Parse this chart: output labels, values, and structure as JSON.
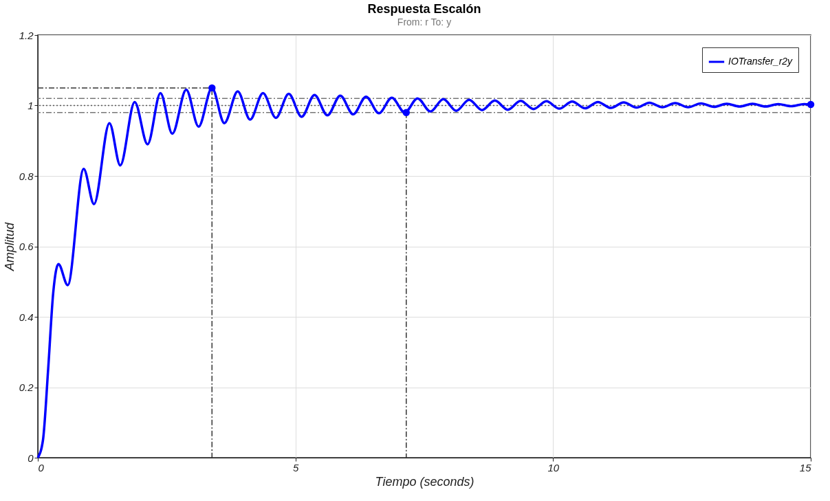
{
  "chart_data": {
    "type": "line",
    "title": "Respuesta Escalón",
    "subtitle": "From: r  To: y",
    "xlabel": "Tiempo (seconds)",
    "ylabel": "Amplitud",
    "xlim": [
      0,
      15
    ],
    "xticks": [
      0,
      5,
      10,
      15
    ],
    "ylim": [
      0,
      1.2
    ],
    "yticks": [
      0,
      0.2,
      0.4,
      0.6,
      0.8,
      1,
      1.2
    ],
    "grid": true,
    "legend": "top right",
    "series": [
      {
        "name": "IOTransfer_r2y",
        "color": "#0000ff",
        "line_style": "solid",
        "x": [
          0,
          0.1,
          0.2,
          0.3,
          0.4,
          0.58,
          0.89,
          1.09,
          1.39,
          1.6,
          1.88,
          2.13,
          2.38,
          2.61,
          2.88,
          3.12,
          3.38,
          3.62,
          3.88,
          4.12,
          4.37,
          4.62,
          4.87,
          5.12,
          5.37,
          5.62,
          5.87,
          6.12,
          6.37,
          6.62,
          6.87,
          7.12,
          7.37,
          7.62,
          7.87,
          8.12,
          8.37,
          8.62,
          8.87,
          9.12,
          9.37,
          9.62,
          9.87,
          10.12,
          10.37,
          10.62,
          10.87,
          11.12,
          11.37,
          11.62,
          11.87,
          12.12,
          12.37,
          12.62,
          12.87,
          13.12,
          13.37,
          13.62,
          13.87,
          14.12,
          14.37,
          14.62,
          14.87,
          15
        ],
        "values": [
          0,
          0.05,
          0.25,
          0.47,
          0.55,
          0.49,
          0.82,
          0.72,
          0.95,
          0.83,
          1.01,
          0.89,
          1.035,
          0.92,
          1.045,
          0.94,
          1.05,
          0.95,
          1.04,
          0.96,
          1.035,
          0.965,
          1.033,
          0.968,
          1.03,
          0.972,
          1.028,
          0.975,
          1.025,
          0.978,
          1.022,
          0.98,
          1.02,
          0.983,
          1.018,
          0.985,
          1.016,
          0.987,
          1.014,
          0.988,
          1.013,
          0.99,
          1.012,
          0.991,
          1.011,
          0.992,
          1.01,
          0.993,
          1.009,
          0.994,
          1.008,
          0.995,
          1.007,
          0.995,
          1.006,
          0.996,
          1.005,
          0.997,
          1.005,
          0.997,
          1.004,
          0.998,
          1.004,
          1.003
        ]
      },
      {
        "type": "scatter",
        "marker": "circle",
        "color": "#0000ff",
        "x": [
          3.38,
          7.15,
          15
        ],
        "values": [
          1.05,
          0.98,
          1.003
        ]
      },
      {
        "color": "#333333",
        "line_style": "dashed",
        "x": [
          0,
          3.38,
          3.38
        ],
        "values": [
          1.05,
          1.05,
          0
        ]
      },
      {
        "color": "#333333",
        "line_style": "dashed",
        "x": [
          7.15,
          7.15
        ],
        "values": [
          0.98,
          0
        ]
      }
    ],
    "ref_lines": [
      {
        "axis": "y",
        "value": 1.02,
        "color": "#777777",
        "line_style": "dashed"
      },
      {
        "axis": "y",
        "value": 0.98,
        "color": "#777777",
        "line_style": "dashed"
      },
      {
        "axis": "y",
        "value": 1,
        "color": "#555555",
        "line_style": "dotted"
      }
    ]
  }
}
